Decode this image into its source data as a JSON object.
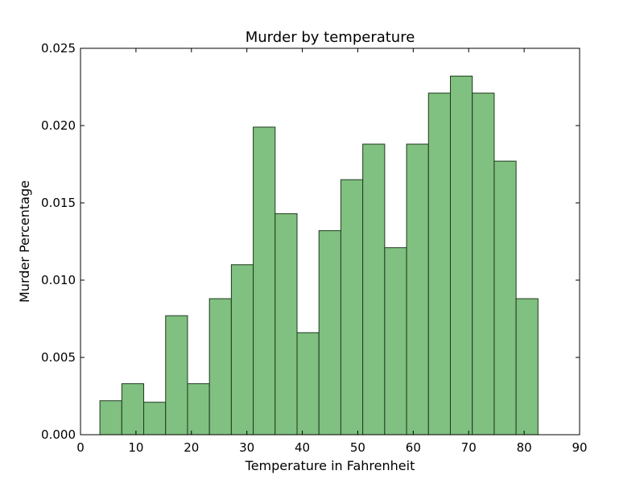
{
  "chart_data": {
    "type": "bar",
    "title": "Murder by temperature",
    "xlabel": "Temperature in Fahrenheit",
    "ylabel": "Murder Percentage",
    "xlim": [
      0,
      90
    ],
    "ylim": [
      0,
      0.025
    ],
    "xticks": [
      "0",
      "10",
      "20",
      "30",
      "40",
      "50",
      "60",
      "70",
      "80",
      "90"
    ],
    "yticks": [
      "0.000",
      "0.005",
      "0.010",
      "0.015",
      "0.020",
      "0.025"
    ],
    "bins": [
      {
        "start": 3.5,
        "end": 7.45,
        "value": 0.0022
      },
      {
        "start": 7.45,
        "end": 11.4,
        "value": 0.0033
      },
      {
        "start": 11.4,
        "end": 15.35,
        "value": 0.0021
      },
      {
        "start": 15.35,
        "end": 19.3,
        "value": 0.0077
      },
      {
        "start": 19.3,
        "end": 23.25,
        "value": 0.0033
      },
      {
        "start": 23.25,
        "end": 27.2,
        "value": 0.0088
      },
      {
        "start": 27.2,
        "end": 31.15,
        "value": 0.011
      },
      {
        "start": 31.15,
        "end": 35.1,
        "value": 0.0199
      },
      {
        "start": 35.1,
        "end": 39.05,
        "value": 0.0143
      },
      {
        "start": 39.05,
        "end": 43.0,
        "value": 0.0066
      },
      {
        "start": 43.0,
        "end": 46.95,
        "value": 0.0132
      },
      {
        "start": 46.95,
        "end": 50.9,
        "value": 0.0165
      },
      {
        "start": 50.9,
        "end": 54.85,
        "value": 0.0188
      },
      {
        "start": 54.85,
        "end": 58.8,
        "value": 0.0121
      },
      {
        "start": 58.8,
        "end": 62.75,
        "value": 0.0188
      },
      {
        "start": 62.75,
        "end": 66.7,
        "value": 0.0221
      },
      {
        "start": 66.7,
        "end": 70.65,
        "value": 0.0232
      },
      {
        "start": 70.65,
        "end": 74.6,
        "value": 0.0221
      },
      {
        "start": 74.6,
        "end": 78.55,
        "value": 0.0177
      },
      {
        "start": 78.55,
        "end": 82.5,
        "value": 0.0088
      }
    ],
    "bar_color": "#80c080",
    "bar_edge_color": "#1f3a1f",
    "grid": false,
    "legend": "none"
  }
}
